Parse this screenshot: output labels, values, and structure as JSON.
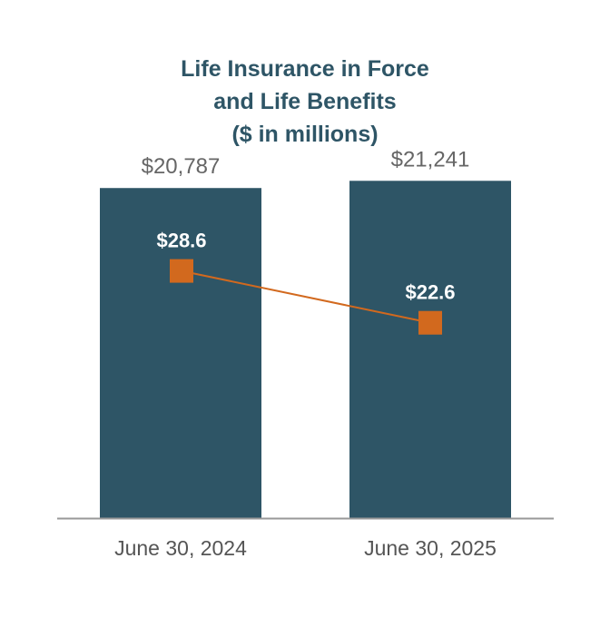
{
  "chart_data": {
    "type": "bar+line",
    "title_lines": [
      "Life Insurance in Force",
      "and Life Benefits",
      "($ in millions)"
    ],
    "categories": [
      "June 30, 2024",
      "June 30, 2025"
    ],
    "series": [
      {
        "name": "Life Insurance in Force",
        "type": "bar",
        "values": [
          20787,
          21241
        ],
        "labels": [
          "$20,787",
          "$21,241"
        ],
        "color": "#2e5566"
      },
      {
        "name": "Life Benefits",
        "type": "line",
        "values": [
          28.6,
          22.6
        ],
        "labels": [
          "$28.6",
          "$22.6"
        ],
        "color": "#d2691e"
      }
    ],
    "bar_ylim": [
      0,
      22000
    ],
    "line_ylim": [
      0,
      40
    ],
    "axis_color": "#999999"
  }
}
